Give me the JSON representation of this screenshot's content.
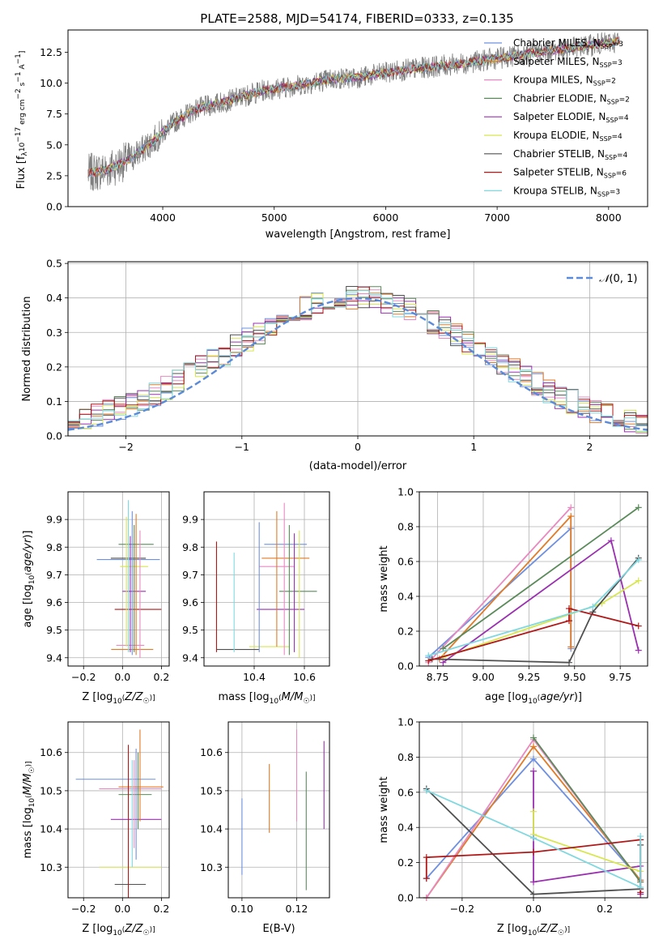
{
  "figure_title": "PLATE=2588, MJD=54174, FIBERID=0333, z=0.135",
  "series_colors": [
    "#6f90e0",
    "#e07b28",
    "#e88ac0",
    "#5a8a5a",
    "#9a30b0",
    "#d8e650",
    "#505050",
    "#b01818",
    "#7fd8e0"
  ],
  "chart_data": [
    {
      "id": "spectrum",
      "type": "line",
      "title": "PLATE=2588, MJD=54174, FIBERID=0333, z=0.135",
      "xlabel": "wavelength [Angstrom, rest frame]",
      "ylabel": "Flux [f_λ10^-17 erg cm^-2 s^-1 A^-1]",
      "xlim": [
        3150,
        8350
      ],
      "ylim": [
        0,
        14.3
      ],
      "xticks": [
        4000,
        5000,
        6000,
        7000,
        8000
      ],
      "yticks": [
        0.0,
        2.5,
        5.0,
        7.5,
        10.0,
        12.5
      ],
      "grid": false,
      "legend_position": "top-right",
      "legend": [
        {
          "model": "Chabrier MILES",
          "nssp": "3"
        },
        {
          "model": "Salpeter MILES",
          "nssp": "3"
        },
        {
          "model": "Kroupa MILES",
          "nssp": "2"
        },
        {
          "model": "Chabrier ELODIE",
          "nssp": "2"
        },
        {
          "model": "Salpeter ELODIE",
          "nssp": "4"
        },
        {
          "model": "Kroupa ELODIE",
          "nssp": "4"
        },
        {
          "model": "Chabrier STELIB",
          "nssp": "4"
        },
        {
          "model": "Salpeter STELIB",
          "nssp": "6"
        },
        {
          "model": "Kroupa STELIB",
          "nssp": "3"
        }
      ],
      "data_envelope": {
        "wavelength": [
          3330,
          3500,
          3700,
          3900,
          4100,
          4300,
          4600,
          4900,
          5200,
          5500,
          5800,
          6100,
          6400,
          6700,
          7000,
          7300,
          7700,
          8100
        ],
        "flux": [
          2.7,
          3.0,
          3.8,
          5.2,
          6.8,
          7.9,
          8.6,
          9.4,
          9.8,
          10.3,
          10.5,
          11.0,
          11.3,
          11.6,
          12.0,
          12.4,
          12.9,
          13.4
        ]
      }
    },
    {
      "id": "residuals",
      "type": "histogram",
      "xlabel": "(data-model)/error",
      "ylabel": "Normed distribution",
      "xlim": [
        -2.5,
        2.5
      ],
      "ylim": [
        0,
        0.505
      ],
      "xticks": [
        -2,
        -1,
        0,
        1,
        2
      ],
      "yticks": [
        0.0,
        0.1,
        0.2,
        0.3,
        0.4,
        0.5
      ],
      "grid": true,
      "legend_position": "top-right",
      "reference_curve": "N(0,1)",
      "bin_width": 0.1,
      "bin_start": -2.5,
      "bin_values": [
        0.04,
        0.05,
        0.06,
        0.07,
        0.08,
        0.09,
        0.1,
        0.12,
        0.14,
        0.16,
        0.18,
        0.2,
        0.22,
        0.24,
        0.26,
        0.28,
        0.3,
        0.32,
        0.34,
        0.36,
        0.37,
        0.38,
        0.39,
        0.4,
        0.4,
        0.4,
        0.4,
        0.39,
        0.38,
        0.37,
        0.35,
        0.33,
        0.31,
        0.29,
        0.27,
        0.25,
        0.23,
        0.21,
        0.19,
        0.17,
        0.15,
        0.13,
        0.11,
        0.1,
        0.08,
        0.07,
        0.06,
        0.05,
        0.04,
        0.03
      ]
    },
    {
      "id": "age_vs_Z",
      "type": "errorbar",
      "xlabel": "Z [log10(Z/Z☉)]",
      "ylabel": "age  [log10(age/yr)]",
      "xlim": [
        -0.28,
        0.24
      ],
      "ylim": [
        9.37,
        10.0
      ],
      "xticks": [
        -0.2,
        0.0,
        0.2
      ],
      "yticks": [
        9.4,
        9.5,
        9.6,
        9.7,
        9.8,
        9.9
      ],
      "grid": true,
      "points": [
        {
          "x": 0.03,
          "xerr": 0.27,
          "y": 9.755,
          "yerr": 0.0
        },
        {
          "x": 0.05,
          "xerr": 0.18,
          "y": 9.43,
          "yerr": 0.0
        },
        {
          "x": 0.04,
          "xerr": 0.12,
          "y": 9.445,
          "yerr": 0.0
        },
        {
          "x": 0.07,
          "xerr": 0.15,
          "y": 9.81,
          "yerr": 0.0
        },
        {
          "x": 0.06,
          "xerr": 0.1,
          "y": 9.64,
          "yerr": 0.0
        },
        {
          "x": 0.06,
          "xerr": 0.12,
          "y": 9.73,
          "yerr": 0.0
        },
        {
          "x": 0.03,
          "xerr": 0.15,
          "y": 9.76,
          "yerr": 0.0
        },
        {
          "x": 0.08,
          "xerr": 0.2,
          "y": 9.575,
          "yerr": 0.0
        }
      ],
      "vlines": [
        {
          "x": 0.03,
          "y0": 9.42,
          "y1": 9.97
        },
        {
          "x": 0.05,
          "y0": 9.41,
          "y1": 9.93
        },
        {
          "x": 0.07,
          "y0": 9.41,
          "y1": 9.92
        },
        {
          "x": 0.09,
          "y0": 9.4,
          "y1": 9.86
        },
        {
          "x": 0.06,
          "y0": 9.42,
          "y1": 9.88
        },
        {
          "x": 0.04,
          "y0": 9.42,
          "y1": 9.84
        },
        {
          "x": 0.02,
          "y0": 9.44,
          "y1": 9.91
        }
      ]
    },
    {
      "id": "age_vs_mass",
      "type": "errorbar",
      "xlabel": "mass [log10(M/M☉)]",
      "ylabel": "",
      "xlim": [
        10.2,
        10.7
      ],
      "ylim": [
        9.37,
        10.0
      ],
      "xticks": [
        10.4,
        10.6
      ],
      "yticks": [
        9.4,
        9.5,
        9.6,
        9.7,
        9.8,
        9.9
      ],
      "grid": true,
      "hsegs": [
        {
          "y": 9.81,
          "x0": 10.44,
          "x1": 10.61
        },
        {
          "y": 9.76,
          "x0": 10.43,
          "x1": 10.62
        },
        {
          "y": 9.73,
          "x0": 10.42,
          "x1": 10.56
        },
        {
          "y": 9.64,
          "x0": 10.5,
          "x1": 10.65
        },
        {
          "y": 9.575,
          "x0": 10.41,
          "x1": 10.6
        },
        {
          "y": 9.44,
          "x0": 10.38,
          "x1": 10.54
        },
        {
          "y": 9.43,
          "x0": 10.25,
          "x1": 10.42
        }
      ],
      "vlines": [
        {
          "x": 10.25,
          "y0": 9.42,
          "y1": 9.82
        },
        {
          "x": 10.32,
          "y0": 9.42,
          "y1": 9.78
        },
        {
          "x": 10.42,
          "y0": 9.42,
          "y1": 9.89
        },
        {
          "x": 10.49,
          "y0": 9.44,
          "y1": 9.93
        },
        {
          "x": 10.52,
          "y0": 9.41,
          "y1": 9.96
        },
        {
          "x": 10.54,
          "y0": 9.41,
          "y1": 9.88
        },
        {
          "x": 10.56,
          "y0": 9.42,
          "y1": 9.85
        },
        {
          "x": 10.58,
          "y0": 9.4,
          "y1": 9.86
        }
      ]
    },
    {
      "id": "weight_vs_age",
      "type": "line",
      "xlabel": "age  [log10(age/yr)]",
      "ylabel": "mass weight",
      "xlim": [
        8.65,
        9.9
      ],
      "ylim": [
        0,
        1.0
      ],
      "xticks": [
        8.75,
        9.0,
        9.25,
        9.5,
        9.75
      ],
      "yticks": [
        0.0,
        0.2,
        0.4,
        0.6,
        0.8,
        1.0
      ],
      "grid": true,
      "series": [
        {
          "x": [
            8.7,
            9.48,
            9.48
          ],
          "y": [
            0.05,
            0.79,
            0.1
          ]
        },
        {
          "x": [
            8.76,
            9.48,
            9.48
          ],
          "y": [
            0.04,
            0.86,
            0.11
          ]
        },
        {
          "x": [
            8.7,
            9.48
          ],
          "y": [
            0.02,
            0.91
          ]
        },
        {
          "x": [
            8.78,
            9.85
          ],
          "y": [
            0.1,
            0.91
          ]
        },
        {
          "x": [
            8.78,
            9.7,
            9.85
          ],
          "y": [
            0.02,
            0.72,
            0.09
          ]
        },
        {
          "x": [
            8.78,
            9.65,
            9.85
          ],
          "y": [
            0.05,
            0.36,
            0.49
          ]
        },
        {
          "x": [
            8.72,
            9.47,
            9.6,
            9.85
          ],
          "y": [
            0.04,
            0.02,
            0.31,
            0.62
          ]
        },
        {
          "x": [
            8.7,
            9.47,
            9.47,
            9.85
          ],
          "y": [
            0.03,
            0.26,
            0.33,
            0.23
          ]
        },
        {
          "x": [
            8.7,
            9.6,
            9.85
          ],
          "y": [
            0.06,
            0.34,
            0.61
          ]
        }
      ]
    },
    {
      "id": "mass_vs_Z",
      "type": "errorbar",
      "xlabel": "Z [log10(Z/Z☉)]",
      "ylabel": "mass [log10(M/M☉)]",
      "xlim": [
        -0.28,
        0.24
      ],
      "ylim": [
        10.22,
        10.68
      ],
      "xticks": [
        -0.2,
        0.0,
        0.2
      ],
      "yticks": [
        10.3,
        10.4,
        10.5,
        10.6
      ],
      "grid": true,
      "hsegs": [
        {
          "y": 10.53,
          "x0": -0.24,
          "x1": 0.17
        },
        {
          "y": 10.51,
          "x0": -0.02,
          "x1": 0.21
        },
        {
          "y": 10.505,
          "x0": -0.12,
          "x1": 0.2
        },
        {
          "y": 10.49,
          "x0": -0.02,
          "x1": 0.15
        },
        {
          "y": 10.425,
          "x0": -0.06,
          "x1": 0.2
        },
        {
          "y": 10.3,
          "x0": -0.12,
          "x1": 0.2
        },
        {
          "y": 10.255,
          "x0": -0.04,
          "x1": 0.12
        }
      ],
      "vlines": [
        {
          "x": 0.03,
          "y0": 10.22,
          "y1": 10.62
        },
        {
          "x": 0.05,
          "y0": 10.3,
          "y1": 10.58
        },
        {
          "x": 0.07,
          "y0": 10.32,
          "y1": 10.61
        },
        {
          "x": 0.09,
          "y0": 10.42,
          "y1": 10.66
        },
        {
          "x": 0.06,
          "y0": 10.35,
          "y1": 10.58
        },
        {
          "x": 0.08,
          "y0": 10.4,
          "y1": 10.6
        }
      ]
    },
    {
      "id": "mass_vs_ebv",
      "type": "errorbar",
      "xlabel": "E(B-V)",
      "ylabel": "",
      "xlim": [
        0.095,
        0.132
      ],
      "ylim": [
        10.22,
        10.68
      ],
      "xticks": [
        0.1,
        0.12
      ],
      "yticks": [
        10.3,
        10.4,
        10.5,
        10.6
      ],
      "grid": true,
      "vlines": [
        {
          "x": 0.1,
          "y0": 10.28,
          "y1": 10.48
        },
        {
          "x": 0.11,
          "y0": 10.39,
          "y1": 10.57
        },
        {
          "x": 0.12,
          "y0": 10.42,
          "y1": 10.66
        },
        {
          "x": 0.1235,
          "y0": 10.24,
          "y1": 10.55
        },
        {
          "x": 0.13,
          "y0": 10.4,
          "y1": 10.63
        }
      ]
    },
    {
      "id": "weight_vs_Z",
      "type": "line",
      "xlabel": "Z [log10(Z/Z☉)]",
      "ylabel": "mass weight",
      "xlim": [
        -0.32,
        0.32
      ],
      "ylim": [
        0,
        1.0
      ],
      "xticks": [
        -0.2,
        0.0,
        0.2
      ],
      "yticks": [
        0.0,
        0.2,
        0.4,
        0.6,
        0.8,
        1.0
      ],
      "grid": true,
      "series": [
        {
          "x": [
            -0.3,
            0.0,
            0.3
          ],
          "y": [
            0.11,
            0.79,
            0.1
          ]
        },
        {
          "x": [
            -0.3,
            0.0,
            0.3
          ],
          "y": [
            0.0,
            0.86,
            0.1
          ]
        },
        {
          "x": [
            -0.3,
            0.0,
            0.3
          ],
          "y": [
            0.0,
            0.9,
            0.09
          ]
        },
        {
          "x": [
            0.0,
            0.3
          ],
          "y": [
            0.91,
            0.09
          ]
        },
        {
          "x": [
            0.0,
            0.0,
            0.3,
            0.3
          ],
          "y": [
            0.72,
            0.09,
            0.18,
            0.02
          ]
        },
        {
          "x": [
            0.0,
            0.0,
            0.3
          ],
          "y": [
            0.49,
            0.36,
            0.15
          ]
        },
        {
          "x": [
            -0.3,
            0.0,
            0.3,
            0.3
          ],
          "y": [
            0.62,
            0.02,
            0.05,
            0.3
          ]
        },
        {
          "x": [
            -0.3,
            -0.3,
            0.0,
            0.3,
            0.3
          ],
          "y": [
            0.11,
            0.23,
            0.26,
            0.33,
            0.03
          ]
        },
        {
          "x": [
            -0.3,
            0.0,
            0.3,
            0.3
          ],
          "y": [
            0.61,
            0.34,
            0.06,
            0.35
          ]
        }
      ]
    }
  ]
}
